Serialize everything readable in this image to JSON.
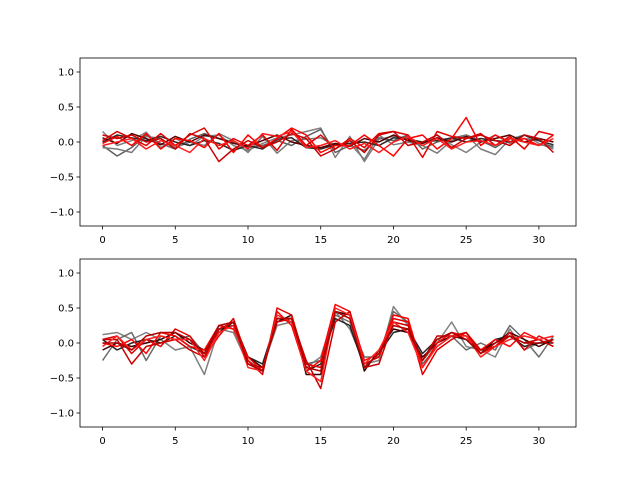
{
  "chart_data": [
    {
      "type": "line",
      "title": "",
      "xlabel": "",
      "ylabel": "",
      "xlim": [
        -1.55,
        32.55
      ],
      "ylim": [
        -1.2,
        1.2
      ],
      "xticks": [
        0,
        5,
        10,
        15,
        20,
        25,
        30
      ],
      "yticks": [
        -1.0,
        -0.5,
        0.0,
        0.5,
        1.0
      ],
      "xtick_labels": [
        "0",
        "5",
        "10",
        "15",
        "20",
        "25",
        "30"
      ],
      "ytick_labels": [
        "−1.0",
        "−0.5",
        "0.0",
        "0.5",
        "1.0"
      ],
      "grid": false,
      "series": [
        {
          "color": "#808080",
          "values": [
            0.15,
            -0.05,
            0.02,
            0.14,
            -0.08,
            0.05,
            -0.05,
            0.08,
            0.1,
            -0.05,
            -0.12,
            -0.02,
            0.06,
            0.1,
            0.15,
            0.2,
            -0.22,
            0.08,
            -0.28,
            0.04,
            0.08,
            0.06,
            -0.02,
            0.1,
            -0.04,
            -0.15,
            0.0,
            0.1,
            -0.02,
            0.05,
            0.02,
            -0.08
          ]
        },
        {
          "color": "#606060",
          "values": [
            -0.05,
            -0.2,
            -0.08,
            0.1,
            -0.02,
            -0.1,
            0.04,
            0.12,
            0.05,
            0.0,
            -0.08,
            -0.05,
            0.02,
            -0.05,
            0.08,
            0.18,
            -0.15,
            -0.05,
            -0.12,
            0.06,
            0.02,
            0.1,
            -0.1,
            0.0,
            0.05,
            0.1,
            0.02,
            -0.08,
            0.05,
            0.0,
            -0.04,
            -0.06
          ]
        },
        {
          "color": "#7a7a7a",
          "values": [
            -0.08,
            -0.1,
            -0.15,
            0.08,
            0.05,
            -0.08,
            0.0,
            -0.05,
            0.12,
            0.02,
            -0.15,
            0.08,
            -0.16,
            0.02,
            0.04,
            0.06,
            -0.05,
            -0.02,
            -0.25,
            0.1,
            -0.04,
            0.0,
            -0.05,
            -0.16,
            0.02,
            0.1,
            -0.1,
            -0.18,
            0.04,
            0.1,
            -0.02,
            -0.1
          ]
        },
        {
          "color": "#2a2a2a",
          "values": [
            0.0,
            0.1,
            0.06,
            0.02,
            0.08,
            0.0,
            -0.05,
            0.02,
            -0.02,
            -0.12,
            -0.05,
            -0.1,
            0.04,
            0.06,
            -0.08,
            -0.1,
            -0.04,
            -0.02,
            0.0,
            -0.05,
            0.06,
            0.04,
            0.0,
            0.02,
            0.06,
            0.0,
            0.05,
            0.02,
            0.0,
            0.1,
            0.02,
            -0.04
          ]
        },
        {
          "color": "#5a0000",
          "values": [
            0.06,
            -0.02,
            0.12,
            0.05,
            -0.04,
            0.08,
            0.0,
            0.1,
            0.05,
            -0.02,
            -0.06,
            0.02,
            0.1,
            0.0,
            -0.05,
            -0.08,
            -0.02,
            -0.06,
            0.05,
            0.0,
            0.1,
            0.02,
            -0.02,
            0.06,
            0.0,
            0.08,
            0.0,
            0.05,
            0.1,
            0.0,
            0.05,
            0.0
          ]
        },
        {
          "color": "#e00000",
          "values": [
            0.02,
            0.15,
            0.05,
            -0.05,
            0.12,
            -0.05,
            0.1,
            0.2,
            -0.1,
            0.05,
            -0.05,
            0.1,
            -0.12,
            0.18,
            -0.05,
            0.1,
            -0.1,
            0.05,
            -0.08,
            0.12,
            0.15,
            0.1,
            -0.22,
            0.15,
            0.08,
            0.05,
            0.12,
            -0.05,
            0.08,
            -0.1,
            0.15,
            0.1
          ]
        },
        {
          "color": "#ff0000",
          "values": [
            -0.02,
            0.08,
            -0.05,
            0.12,
            -0.1,
            0.05,
            0.02,
            -0.08,
            0.12,
            -0.15,
            0.1,
            -0.08,
            0.05,
            0.2,
            0.1,
            -0.15,
            -0.05,
            -0.05,
            0.1,
            -0.05,
            -0.2,
            0.05,
            0.1,
            -0.1,
            0.05,
            0.35,
            -0.05,
            0.1,
            0.0,
            0.05,
            -0.05,
            0.1
          ]
        },
        {
          "color": "#cc0000",
          "values": [
            0.1,
            0.05,
            0.1,
            0.0,
            0.05,
            -0.1,
            0.12,
            0.05,
            -0.28,
            -0.1,
            0.02,
            -0.08,
            0.0,
            0.12,
            0.05,
            -0.2,
            -0.1,
            0.02,
            -0.15,
            0.1,
            0.15,
            -0.05,
            0.0,
            0.1,
            -0.08,
            0.05,
            0.1,
            0.02,
            -0.05,
            0.1,
            0.05,
            -0.15
          ]
        },
        {
          "color": "#ff1a1a",
          "values": [
            -0.05,
            0.0,
            0.05,
            -0.1,
            0.02,
            -0.05,
            -0.15,
            0.05,
            -0.05,
            0.02,
            -0.1,
            0.12,
            0.08,
            0.15,
            -0.08,
            -0.05,
            0.02,
            -0.1,
            -0.02,
            -0.15,
            0.0,
            0.08,
            -0.05,
            0.05,
            -0.1,
            0.0,
            0.02,
            -0.05,
            0.05,
            0.0,
            -0.05,
            0.05
          ]
        }
      ]
    },
    {
      "type": "line",
      "title": "",
      "xlabel": "",
      "ylabel": "",
      "xlim": [
        -1.55,
        32.55
      ],
      "ylim": [
        -1.2,
        1.2
      ],
      "xticks": [
        0,
        5,
        10,
        15,
        20,
        25,
        30
      ],
      "yticks": [
        -1.0,
        -0.5,
        0.0,
        0.5,
        1.0
      ],
      "xtick_labels": [
        "0",
        "5",
        "10",
        "15",
        "20",
        "25",
        "30"
      ],
      "ytick_labels": [
        "−1.0",
        "−0.5",
        "0.0",
        "0.5",
        "1.0"
      ],
      "grid": false,
      "series": [
        {
          "color": "#808080",
          "values": [
            0.12,
            0.15,
            0.05,
            0.15,
            0.05,
            -0.1,
            -0.05,
            -0.45,
            0.2,
            0.15,
            -0.3,
            -0.35,
            0.25,
            0.3,
            -0.35,
            -0.2,
            0.45,
            0.2,
            -0.3,
            -0.25,
            0.52,
            0.25,
            -0.25,
            0.0,
            0.3,
            -0.05,
            -0.1,
            -0.2,
            0.2,
            -0.1,
            0.0,
            0.05
          ]
        },
        {
          "color": "#6a6a6a",
          "values": [
            -0.25,
            0.05,
            0.15,
            -0.25,
            0.1,
            0.05,
            0.1,
            -0.15,
            0.25,
            0.2,
            -0.25,
            -0.4,
            0.35,
            0.3,
            -0.3,
            -0.25,
            0.4,
            0.3,
            -0.2,
            -0.2,
            0.45,
            0.3,
            -0.3,
            -0.05,
            0.1,
            -0.1,
            0.0,
            -0.1,
            0.25,
            0.05,
            -0.2,
            0.1
          ]
        },
        {
          "color": "#222222",
          "values": [
            0.05,
            -0.1,
            0.0,
            0.05,
            0.0,
            0.1,
            -0.05,
            -0.15,
            0.2,
            0.25,
            -0.2,
            -0.3,
            0.35,
            0.35,
            -0.4,
            -0.3,
            0.35,
            0.25,
            -0.35,
            -0.15,
            0.15,
            0.2,
            -0.15,
            0.05,
            0.15,
            0.05,
            -0.15,
            0.05,
            0.1,
            -0.05,
            0.0,
            0.0
          ]
        },
        {
          "color": "#3a0000",
          "values": [
            -0.1,
            0.0,
            -0.05,
            0.0,
            0.05,
            0.15,
            0.0,
            -0.1,
            0.15,
            0.3,
            -0.2,
            -0.35,
            0.3,
            0.4,
            -0.45,
            -0.45,
            0.45,
            0.4,
            -0.4,
            -0.1,
            0.2,
            0.15,
            -0.2,
            0.0,
            0.1,
            0.05,
            -0.1,
            0.0,
            0.15,
            0.05,
            -0.05,
            0.05
          ]
        },
        {
          "color": "#e00000",
          "values": [
            0.05,
            0.1,
            -0.15,
            0.05,
            -0.05,
            0.2,
            0.1,
            -0.2,
            0.1,
            0.35,
            -0.25,
            -0.45,
            0.5,
            0.4,
            -0.3,
            -0.35,
            0.45,
            0.35,
            -0.3,
            -0.2,
            0.35,
            0.3,
            -0.45,
            -0.1,
            0.05,
            0.15,
            -0.15,
            -0.05,
            0.15,
            -0.1,
            0.1,
            0.0
          ]
        },
        {
          "color": "#ff0000",
          "values": [
            0.0,
            -0.05,
            0.05,
            -0.15,
            0.15,
            0.1,
            -0.05,
            -0.1,
            0.25,
            0.2,
            -0.2,
            -0.4,
            0.45,
            0.25,
            -0.4,
            -0.25,
            0.55,
            0.45,
            -0.25,
            -0.15,
            0.4,
            0.35,
            -0.35,
            0.0,
            0.15,
            0.1,
            -0.1,
            0.05,
            -0.05,
            0.15,
            0.05,
            -0.05
          ]
        },
        {
          "color": "#cc0000",
          "values": [
            0.05,
            0.05,
            -0.3,
            -0.05,
            0.0,
            0.05,
            -0.1,
            -0.2,
            0.2,
            0.3,
            -0.3,
            -0.35,
            0.3,
            0.35,
            -0.25,
            -0.65,
            0.3,
            0.45,
            -0.35,
            -0.3,
            0.3,
            0.25,
            -0.25,
            0.1,
            0.1,
            0.15,
            -0.1,
            -0.05,
            0.1,
            0.0,
            0.05,
            -0.05
          ]
        },
        {
          "color": "#ff2020",
          "values": [
            -0.05,
            0.1,
            -0.1,
            0.05,
            0.1,
            0.05,
            0.05,
            -0.25,
            0.15,
            0.25,
            -0.35,
            -0.4,
            0.4,
            0.3,
            -0.4,
            -0.55,
            0.5,
            0.4,
            -0.3,
            -0.1,
            0.3,
            0.15,
            -0.35,
            -0.05,
            0.1,
            0.1,
            -0.2,
            -0.05,
            0.05,
            0.1,
            0.05,
            0.1
          ]
        },
        {
          "color": "#b00000",
          "values": [
            0.0,
            0.0,
            -0.1,
            0.1,
            0.15,
            0.15,
            0.05,
            -0.15,
            0.25,
            0.3,
            -0.3,
            -0.4,
            0.35,
            0.35,
            -0.35,
            -0.4,
            0.45,
            0.35,
            -0.35,
            -0.15,
            0.25,
            0.2,
            -0.25,
            0.05,
            0.15,
            0.05,
            -0.15,
            0.0,
            0.1,
            0.0,
            0.0,
            0.05
          ]
        }
      ]
    }
  ]
}
